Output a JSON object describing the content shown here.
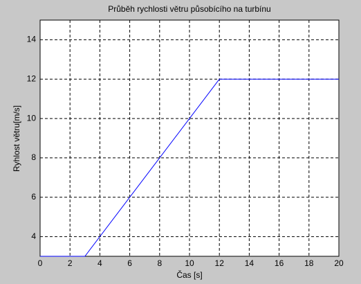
{
  "chart_data": {
    "type": "line",
    "title": "Průběh rychlosti větru působícího na turbínu",
    "x_label": "Čas [s]",
    "y_label": "Ryhlost větru[m/s]",
    "x": [
      0,
      3,
      12,
      20
    ],
    "series": [
      {
        "name": null,
        "color": "#0000ff",
        "values": [
          3,
          3,
          12,
          12
        ]
      }
    ],
    "xlim": [
      0,
      20
    ],
    "xticks": [
      0,
      2,
      4,
      6,
      8,
      10,
      12,
      14,
      16,
      18,
      20
    ],
    "ylim": [
      3,
      15
    ],
    "yticks": [
      4,
      6,
      8,
      10,
      12,
      14
    ],
    "grid": true
  }
}
